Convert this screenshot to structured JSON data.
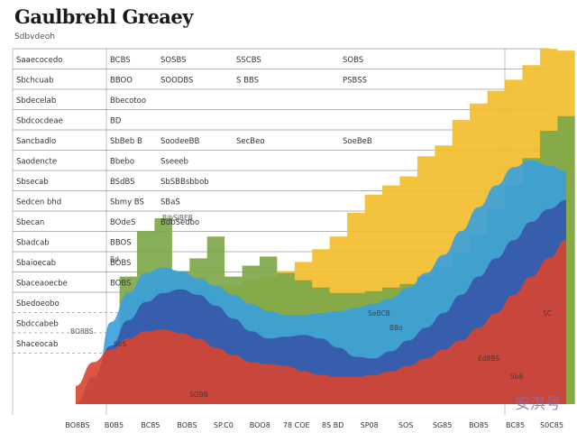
{
  "header": {
    "title": "Gaulbrehl Greaey",
    "subtitle": "Sdbvdeoh"
  },
  "watermark": "安淇号",
  "colors": {
    "yellow": "#f2be2e",
    "green": "#7ea84a",
    "lightblue": "#3aa0dd",
    "darkblue": "#3656a8",
    "red": "#d8442f",
    "grid": "#9a9a9a",
    "text": "#333333"
  },
  "chart_data": {
    "type": "area",
    "title": "Gaulbrehl Greaey",
    "xlabel": "",
    "ylabel": "",
    "x": [
      0,
      1,
      2,
      3,
      4,
      5,
      6,
      7,
      8,
      9,
      10,
      11,
      12,
      13,
      14,
      15,
      16,
      17,
      18,
      19,
      20,
      21,
      22,
      23,
      24,
      25,
      26,
      27,
      28
    ],
    "xlim": [
      0,
      28
    ],
    "ylim": [
      0,
      20
    ],
    "grid": true,
    "legend": "none",
    "x_tick_labels": [
      "BO8BS",
      "B0B5",
      "BC85",
      "BOBS",
      "SP.C0",
      "BOO8",
      "78 COE",
      "8S BD",
      "SP08",
      "SOS",
      "SG85",
      "BO85",
      "BC85",
      "S0C85"
    ],
    "row_labels": [
      "Saaecocedo",
      "Sbchcuab",
      "Sbdecelab",
      "Sbdcocdeae",
      "Sancbadlo",
      "Saodencte",
      "Sbsecab",
      "Sedcen bhd",
      "Sbecan",
      "Sbadcab",
      "Sbaioecab",
      "Sbaceaoecbe",
      "Sbedoeobo",
      "Sbdccabeb",
      "Shaceocab"
    ],
    "table_cells": [
      [
        "BCBS",
        "SOSBS",
        "SSCBS",
        "SOBS"
      ],
      [
        "BBOO",
        "SOODBS",
        "S BBS",
        "PSBSS"
      ],
      [
        "Bbecotoo",
        "",
        "",
        ""
      ],
      [
        "BD",
        "",
        "",
        ""
      ],
      [
        "SbBeb B",
        "SoodeeBB",
        "SecBeo",
        "SoeBeB"
      ],
      [
        "Bbebo",
        "Sseeeb",
        "",
        ""
      ],
      [
        "BSdBS",
        "SbSBBsbbob",
        "",
        ""
      ],
      [
        "Sbmy BS",
        "SBaS",
        "",
        ""
      ],
      [
        "BOdeS",
        "BdbSedbo",
        "",
        ""
      ],
      [
        "BBOS",
        "",
        "",
        ""
      ],
      [
        "BOBS",
        "",
        "",
        ""
      ],
      [
        "BOBS",
        "",
        "",
        ""
      ]
    ],
    "annotations": [
      "BlbSjBEB",
      "Bd",
      "SeBCB",
      "BBo",
      "BO8BS",
      "Ed8BS",
      "Sb8",
      "SbS",
      "SOBB",
      "SC"
    ],
    "series": [
      {
        "color": "#f2be2e",
        "values": [
          0,
          0,
          0,
          0,
          6.2,
          7.0,
          7.0,
          7.0,
          6.5,
          6.5,
          6.8,
          7.0,
          7.3,
          7.8,
          8.5,
          9.2,
          10.5,
          11.5,
          12.0,
          12.5,
          13.6,
          14.2,
          15.6,
          16.5,
          17.2,
          17.8,
          18.6,
          19.5,
          19.4
        ]
      },
      {
        "color": "#7ea84a",
        "values": [
          0,
          0,
          0,
          7.0,
          9.5,
          10.2,
          7.3,
          8.0,
          9.2,
          7.0,
          7.6,
          8.1,
          7.2,
          6.8,
          6.4,
          6.1,
          6.1,
          6.2,
          6.4,
          6.6,
          7.0,
          7.5,
          8.3,
          9.3,
          10.7,
          12.0,
          13.5,
          15.0,
          15.8
        ]
      },
      {
        "color": "#3aa0dd",
        "values": [
          0,
          0,
          4.5,
          6.1,
          7.2,
          7.5,
          7.3,
          6.9,
          6.5,
          6.0,
          5.5,
          5.1,
          4.9,
          4.9,
          5.0,
          5.1,
          5.3,
          5.5,
          5.8,
          6.4,
          7.2,
          8.2,
          9.5,
          10.8,
          12.0,
          13.0,
          13.4,
          13.1,
          12.8
        ]
      },
      {
        "color": "#3656a8",
        "values": [
          0,
          1.5,
          3.2,
          4.6,
          5.6,
          6.1,
          6.3,
          6.0,
          5.4,
          4.7,
          4.0,
          3.6,
          3.7,
          3.8,
          3.6,
          3.1,
          2.6,
          2.5,
          2.9,
          3.5,
          4.2,
          5.0,
          6.0,
          7.0,
          8.0,
          9.0,
          10.0,
          10.7,
          11.2
        ]
      },
      {
        "color": "#d8442f",
        "values": [
          1.0,
          2.3,
          3.0,
          3.6,
          4.0,
          4.1,
          3.9,
          3.6,
          3.1,
          2.7,
          2.3,
          2.2,
          2.1,
          1.8,
          1.6,
          1.5,
          1.5,
          1.6,
          1.8,
          2.1,
          2.5,
          3.0,
          3.5,
          4.2,
          5.0,
          6.0,
          7.0,
          8.0,
          9.0
        ]
      }
    ]
  }
}
